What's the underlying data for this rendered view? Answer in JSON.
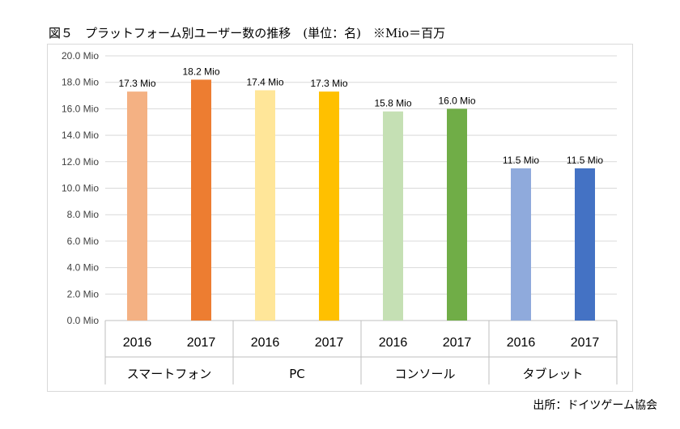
{
  "figure": {
    "title": "図５　プラットフォーム別ユーザー数の推移　(単位：名)　※Mio＝百万",
    "source": "出所：ドイツゲーム協会"
  },
  "chart_data": {
    "type": "bar",
    "ylim": [
      0,
      20
    ],
    "y_ticks": [
      "0.0 Mio",
      "2.0 Mio",
      "4.0 Mio",
      "6.0 Mio",
      "8.0 Mio",
      "10.0 Mio",
      "12.0 Mio",
      "14.0 Mio",
      "16.0 Mio",
      "18.0 Mio",
      "20.0 Mio"
    ],
    "grid": true,
    "groups": [
      {
        "name": "スマートフォン",
        "bars": [
          {
            "year": "2016",
            "value": 17.3,
            "label": "17.3 Mio",
            "color": "#f4b183"
          },
          {
            "year": "2017",
            "value": 18.2,
            "label": "18.2 Mio",
            "color": "#ed7d31"
          }
        ]
      },
      {
        "name": "PC",
        "bars": [
          {
            "year": "2016",
            "value": 17.4,
            "label": "17.4 Mio",
            "color": "#ffe699"
          },
          {
            "year": "2017",
            "value": 17.3,
            "label": "17.3 Mio",
            "color": "#ffc000"
          }
        ]
      },
      {
        "name": "コンソール",
        "bars": [
          {
            "year": "2016",
            "value": 15.8,
            "label": "15.8 Mio",
            "color": "#c5e0b4"
          },
          {
            "year": "2017",
            "value": 16.0,
            "label": "16.0 Mio",
            "color": "#70ad47"
          }
        ]
      },
      {
        "name": "タブレット",
        "bars": [
          {
            "year": "2016",
            "value": 11.5,
            "label": "11.5 Mio",
            "color": "#8faadc"
          },
          {
            "year": "2017",
            "value": 11.5,
            "label": "11.5 Mio",
            "color": "#4472c4"
          }
        ]
      }
    ]
  }
}
